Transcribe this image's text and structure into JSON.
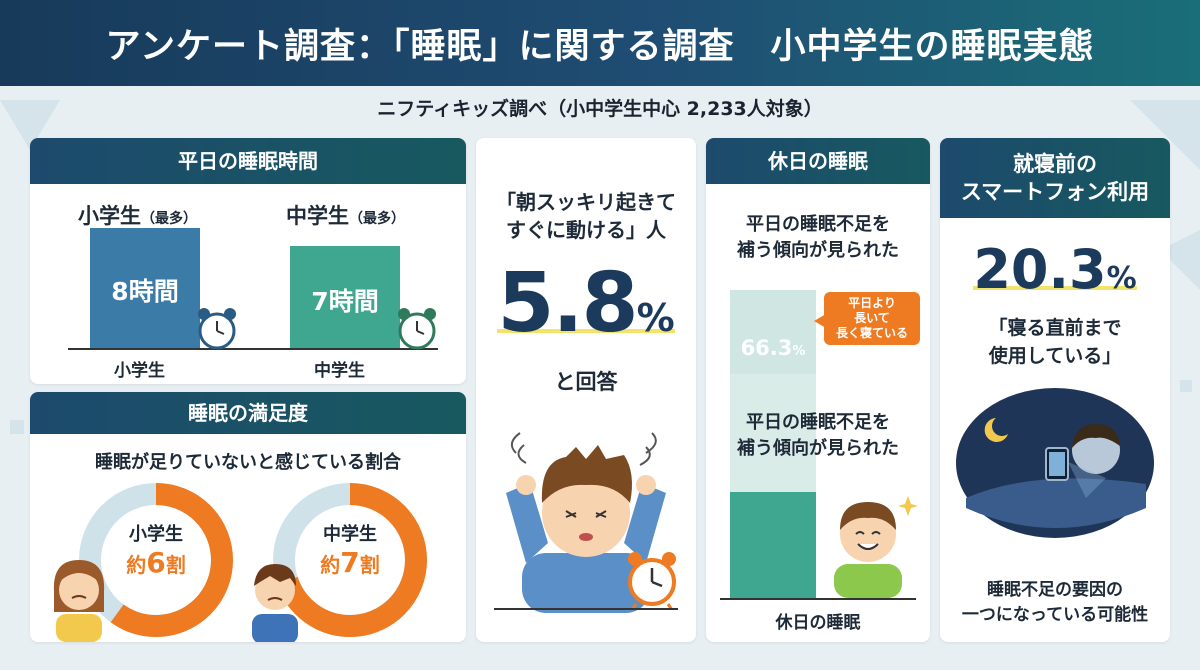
{
  "header": {
    "title": "アンケート調査：「睡眠」に関する調査　小中学生の睡眠実態"
  },
  "subtitle": "ニフティキッズ調べ（小中学生中心 2,233人対象）",
  "weekday": {
    "title": "平日の睡眠時間",
    "elementary": {
      "head": "小学生",
      "suffix": "（最多）",
      "value": "8時間",
      "axis_label": "小学生"
    },
    "middle": {
      "head": "中学生",
      "suffix": "（最多）",
      "value": "7時間",
      "axis_label": "中学生"
    }
  },
  "satisfaction": {
    "title": "睡眠の満足度",
    "question": "睡眠が足りていないと感じている割合",
    "elementary": {
      "label": "小学生",
      "prefix": "約",
      "value": "6",
      "suffix": "割",
      "ratio": 0.6
    },
    "middle": {
      "label": "中学生",
      "prefix": "約",
      "value": "7",
      "suffix": "割",
      "ratio": 0.7
    }
  },
  "morning": {
    "quote_line1": "「朝スッキリ起きて",
    "quote_line2": "すぐに動ける」人",
    "value": "5.8",
    "unit": "%",
    "answer": "と回答"
  },
  "holiday": {
    "title": "休日の睡眠",
    "top_line1": "平日の睡眠不足を",
    "top_line2": "補う傾向が見られた",
    "value": "66.3",
    "unit": "%",
    "ratio": 0.663,
    "callout_line1": "平日より",
    "callout_line2": "長いて",
    "callout_line3": "長く寝ている",
    "mid_line1": "平日の睡眠不足を",
    "mid_line2": "補う傾向が見られた",
    "axis_label": "休日の睡眠"
  },
  "smartphone": {
    "title_line1": "就寝前の",
    "title_line2": "スマートフォン利用",
    "value": "20.3",
    "unit": "%",
    "quote_line1": "「寝る直前まで",
    "quote_line2": "使用している」",
    "bottom_line1": "睡眠不足の要因の",
    "bottom_line2": "一つになっている可能性"
  },
  "colors": {
    "blue_bar": "#3a7ba8",
    "green_bar": "#3fa690",
    "orange": "#ee7a22",
    "light_blue": "#cfe2ea",
    "navy": "#1b3a5c",
    "highlight": "#f4e36a"
  }
}
